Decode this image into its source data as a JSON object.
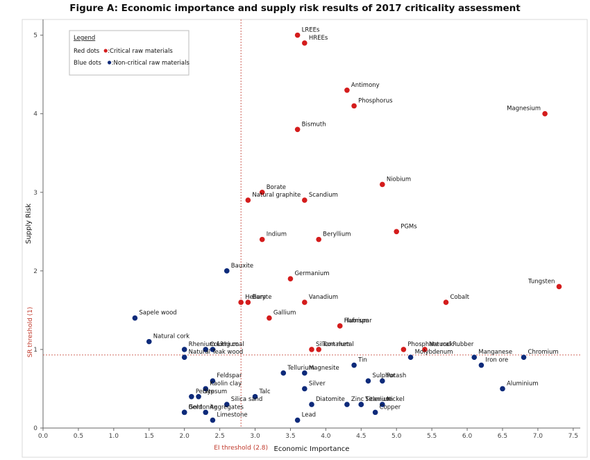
{
  "title": "Figure A: Economic importance and supply risk results of 2017 criticality assessment",
  "chart_data": {
    "type": "scatter",
    "xlabel": "Economic Importance",
    "ylabel": "Supply Risk",
    "xlim": [
      0,
      7.6
    ],
    "ylim": [
      0,
      5.2
    ],
    "x_ticks": [
      "0.0",
      "0.5",
      "1.0",
      "1.5",
      "2.0",
      "2.5",
      "3.0",
      "3.5",
      "4.0",
      "4.5",
      "5.0",
      "5.5",
      "6.0",
      "6.5",
      "7.0",
      "7.5"
    ],
    "y_ticks": [
      "0",
      "1",
      "2",
      "3",
      "4",
      "5"
    ],
    "grid": false,
    "thresholds": {
      "ei": {
        "value": 2.8,
        "label": "EI threshold (2.8)"
      },
      "sr": {
        "value": 0.93,
        "label": "SR threshold (1)"
      }
    },
    "legend": {
      "title": "Legend",
      "placement": "top-left",
      "items": [
        {
          "prefix": "Red dots",
          "text": ":Critical raw materials",
          "color": "#d41c1c"
        },
        {
          "prefix": "Blue dots",
          "text": ":Non-critical  raw materials",
          "color": "#0d2a7a"
        }
      ]
    },
    "series": [
      {
        "name": "Critical raw materials",
        "color": "#d41c1c",
        "points": [
          {
            "label": "LREEs",
            "x": 3.6,
            "y": 5.0
          },
          {
            "label": "HREEs",
            "x": 3.7,
            "y": 4.9
          },
          {
            "label": "Antimony",
            "x": 4.3,
            "y": 4.3
          },
          {
            "label": "Phosphorus",
            "x": 4.4,
            "y": 4.1
          },
          {
            "label": "Magnesium",
            "x": 7.1,
            "y": 4.0
          },
          {
            "label": "Bismuth",
            "x": 3.6,
            "y": 3.8
          },
          {
            "label": "Niobium",
            "x": 4.8,
            "y": 3.1
          },
          {
            "label": "Borate",
            "x": 3.1,
            "y": 3.0
          },
          {
            "label": "Natural graphite",
            "x": 2.9,
            "y": 2.9
          },
          {
            "label": "Scandium",
            "x": 3.7,
            "y": 2.9
          },
          {
            "label": "PGMs",
            "x": 5.0,
            "y": 2.5
          },
          {
            "label": "Indium",
            "x": 3.1,
            "y": 2.4
          },
          {
            "label": "Beryllium",
            "x": 3.9,
            "y": 2.4
          },
          {
            "label": "Germanium",
            "x": 3.5,
            "y": 1.9
          },
          {
            "label": "Tungsten",
            "x": 7.3,
            "y": 1.8
          },
          {
            "label": "Cobalt",
            "x": 5.7,
            "y": 1.6
          },
          {
            "label": "Helium",
            "x": 2.8,
            "y": 1.6
          },
          {
            "label": "Baryte",
            "x": 2.9,
            "y": 1.6
          },
          {
            "label": "Vanadium",
            "x": 3.7,
            "y": 1.6
          },
          {
            "label": "Gallium",
            "x": 3.2,
            "y": 1.4
          },
          {
            "label": "Fluorspar",
            "x": 4.2,
            "y": 1.3
          },
          {
            "label": "Hafnium",
            "x": 4.2,
            "y": 1.3
          },
          {
            "label": "Phosphate rock",
            "x": 5.1,
            "y": 1.0
          },
          {
            "label": "Natural Rubber",
            "x": 5.4,
            "y": 1.0
          },
          {
            "label": "Silicon metal",
            "x": 3.8,
            "y": 1.0
          },
          {
            "label": "Tantalum",
            "x": 3.9,
            "y": 1.0
          }
        ]
      },
      {
        "name": "Non-critical raw materials",
        "color": "#0d2a7a",
        "points": [
          {
            "label": "Bauxite",
            "x": 2.6,
            "y": 2.0
          },
          {
            "label": "Sapele wood",
            "x": 1.3,
            "y": 1.4
          },
          {
            "label": "Natural cork",
            "x": 1.5,
            "y": 1.1
          },
          {
            "label": "Lithium",
            "x": 2.4,
            "y": 1.0
          },
          {
            "label": "Coking coal",
            "x": 2.3,
            "y": 1.0
          },
          {
            "label": "Rhenium",
            "x": 2.0,
            "y": 1.0
          },
          {
            "label": "Natural Teak wood",
            "x": 2.0,
            "y": 0.9
          },
          {
            "label": "Manganese",
            "x": 6.1,
            "y": 0.9
          },
          {
            "label": "Chromium",
            "x": 6.8,
            "y": 0.9
          },
          {
            "label": "Molybdenum",
            "x": 5.2,
            "y": 0.9
          },
          {
            "label": "Iron ore",
            "x": 6.2,
            "y": 0.8
          },
          {
            "label": "Tellurium",
            "x": 3.4,
            "y": 0.7
          },
          {
            "label": "Magnesite",
            "x": 3.7,
            "y": 0.7
          },
          {
            "label": "Tin",
            "x": 4.4,
            "y": 0.8
          },
          {
            "label": "Potash",
            "x": 4.8,
            "y": 0.6
          },
          {
            "label": "Sulphur",
            "x": 4.6,
            "y": 0.6
          },
          {
            "label": "Feldspar",
            "x": 2.4,
            "y": 0.6
          },
          {
            "label": "Silver",
            "x": 3.7,
            "y": 0.5
          },
          {
            "label": "Aluminium",
            "x": 6.5,
            "y": 0.5
          },
          {
            "label": "Kaolin clay",
            "x": 2.3,
            "y": 0.5
          },
          {
            "label": "Perlite",
            "x": 2.1,
            "y": 0.4
          },
          {
            "label": "Gypsum",
            "x": 2.2,
            "y": 0.4
          },
          {
            "label": "Talc",
            "x": 3.0,
            "y": 0.4
          },
          {
            "label": "Diatomite",
            "x": 3.8,
            "y": 0.3
          },
          {
            "label": "Zinc",
            "x": 4.3,
            "y": 0.3
          },
          {
            "label": "Selenium",
            "x": 4.5,
            "y": 0.3
          },
          {
            "label": "Nickel",
            "x": 4.8,
            "y": 0.3
          },
          {
            "label": "Titanium",
            "x": 4.5,
            "y": 0.3
          },
          {
            "label": "Bentonite",
            "x": 2.0,
            "y": 0.2
          },
          {
            "label": "Gold",
            "x": 2.0,
            "y": 0.2
          },
          {
            "label": "Silica sand",
            "x": 2.6,
            "y": 0.3
          },
          {
            "label": "Copper",
            "x": 4.7,
            "y": 0.2
          },
          {
            "label": "Aggregates",
            "x": 2.3,
            "y": 0.2
          },
          {
            "label": "Limestone",
            "x": 2.4,
            "y": 0.1
          },
          {
            "label": "Lead",
            "x": 3.6,
            "y": 0.1
          }
        ]
      }
    ]
  }
}
